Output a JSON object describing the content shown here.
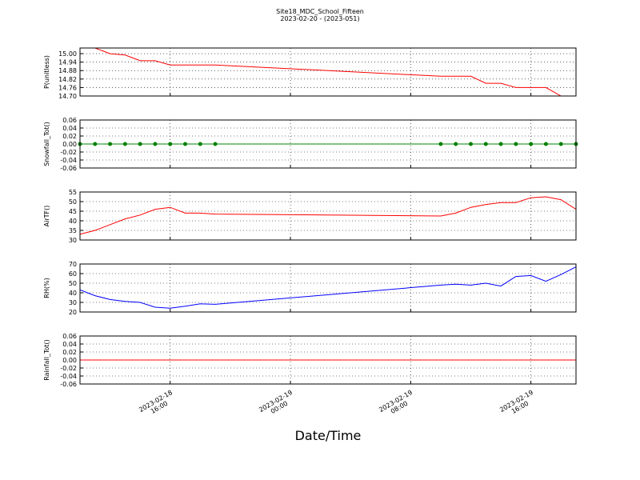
{
  "title": "Site18_MDC_School_Fifteen",
  "subtitle": "2023-02-20 - (2023-051)",
  "x_axis": {
    "label": "Date/Time",
    "x": [
      "2023-02-18 10:00",
      "2023-02-18 11:00",
      "2023-02-18 12:00",
      "2023-02-18 13:00",
      "2023-02-18 14:00",
      "2023-02-18 15:00",
      "2023-02-18 16:00",
      "2023-02-18 17:00",
      "2023-02-18 18:00",
      "2023-02-18 19:00",
      "2023-02-19 10:00",
      "2023-02-19 11:00",
      "2023-02-19 12:00",
      "2023-02-19 13:00",
      "2023-02-19 14:00",
      "2023-02-19 15:00",
      "2023-02-19 16:00",
      "2023-02-19 17:00",
      "2023-02-19 18:00",
      "2023-02-19 19:00"
    ],
    "xlim": [
      "2023-02-18 10:00",
      "2023-02-19 19:00"
    ],
    "xticks": [
      {
        "value": "2023-02-18 16:00",
        "label": "2023-02-18\n16:00"
      },
      {
        "value": "2023-02-19 00:00",
        "label": "2023-02-19\n00:00"
      },
      {
        "value": "2023-02-19 08:00",
        "label": "2023-02-19\n08:00"
      },
      {
        "value": "2023-02-19 16:00",
        "label": "2023-02-19\n16:00"
      }
    ]
  },
  "chart_data": [
    {
      "type": "line",
      "ylabel": "P(unitless)",
      "color": "#ff0000",
      "grid": true,
      "values": [
        15.04,
        15.04,
        15.0,
        14.99,
        14.95,
        14.95,
        14.92,
        14.92,
        14.92,
        14.92,
        14.84,
        14.84,
        14.84,
        14.79,
        14.79,
        14.76,
        14.76,
        14.76,
        14.7,
        14.7
      ],
      "ylim": [
        14.7,
        15.04
      ],
      "yticks": [
        {
          "value": 15.0,
          "label": "15.00"
        },
        14.94,
        14.88,
        14.82,
        14.76,
        {
          "value": 14.7,
          "label": "14.70"
        }
      ]
    },
    {
      "type": "line",
      "ylabel": "Snowfall_Tot()",
      "color": "#008000",
      "marker": "o",
      "grid": true,
      "values": [
        0,
        0,
        0,
        0,
        0,
        0,
        0,
        0,
        0,
        0,
        0,
        0,
        0,
        0,
        0,
        0,
        0,
        0,
        0,
        0
      ],
      "ylim": [
        -0.06,
        0.06
      ],
      "yticks": [
        0.06,
        0.04,
        0.02,
        {
          "value": 0,
          "label": "0.00"
        },
        -0.02,
        -0.04,
        -0.06
      ]
    },
    {
      "type": "line",
      "ylabel": "AirTF()",
      "color": "#ff0000",
      "grid": true,
      "values": [
        33,
        35,
        38,
        41,
        43,
        46,
        47,
        44,
        44,
        43.5,
        42.5,
        44,
        47,
        48.5,
        49.5,
        49.5,
        52,
        52.5,
        51,
        46
      ],
      "ylim": [
        30,
        55
      ],
      "yticks": [
        55,
        50,
        45,
        40,
        35,
        30
      ]
    },
    {
      "type": "line",
      "ylabel": "RH(%)",
      "color": "#0000ff",
      "grid": true,
      "values": [
        43,
        37,
        33,
        31,
        30,
        25,
        24,
        26,
        28.5,
        28,
        48,
        49,
        48,
        50,
        47,
        57,
        58,
        52,
        59,
        67
      ],
      "ylim": [
        20,
        70
      ],
      "yticks": [
        70,
        60,
        50,
        40,
        30,
        20
      ]
    },
    {
      "type": "line",
      "ylabel": "Rainfall_Tot()",
      "color": "#ff0000",
      "grid": true,
      "values": [
        0,
        0,
        0,
        0,
        0,
        0,
        0,
        0,
        0,
        0,
        0,
        0,
        0,
        0,
        0,
        0,
        0,
        0,
        0,
        0
      ],
      "ylim": [
        -0.06,
        0.06
      ],
      "yticks": [
        0.06,
        0.04,
        0.02,
        {
          "value": 0,
          "label": "0.00"
        },
        -0.02,
        -0.04,
        -0.06
      ]
    }
  ]
}
